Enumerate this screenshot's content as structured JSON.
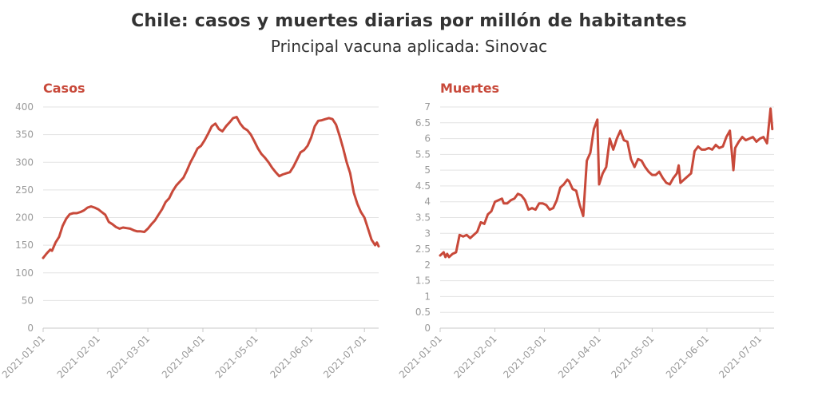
{
  "title": "Chile: casos y muertes diarias por millón de habitantes",
  "subtitle": "Principal vacuna aplicada: Sinovac",
  "colors": {
    "line": "#c8493a",
    "title_text": "#333333",
    "tick_text": "#9a9a9a",
    "grid": "#e3e3e3"
  },
  "chart_data": [
    {
      "type": "line",
      "title": "Casos",
      "xlabel": "",
      "ylabel": "",
      "x_ticks": [
        "2021-01-01",
        "2021-02-01",
        "2021-03-01",
        "2021-04-01",
        "2021-05-01",
        "2021-06-01",
        "2021-07-01"
      ],
      "x_range": [
        "2021-01-01",
        "2021-07-09"
      ],
      "y_ticks": [
        0,
        50,
        100,
        150,
        200,
        250,
        300,
        350,
        400
      ],
      "ylim": [
        0,
        400
      ],
      "grid": true,
      "series": [
        {
          "values": [
            [
              "2021-01-01",
              127
            ],
            [
              "2021-01-03",
              135
            ],
            [
              "2021-01-05",
              142
            ],
            [
              "2021-01-06",
              140
            ],
            [
              "2021-01-08",
              155
            ],
            [
              "2021-01-10",
              165
            ],
            [
              "2021-01-12",
              185
            ],
            [
              "2021-01-14",
              198
            ],
            [
              "2021-01-16",
              206
            ],
            [
              "2021-01-18",
              208
            ],
            [
              "2021-01-20",
              208
            ],
            [
              "2021-01-22",
              210
            ],
            [
              "2021-01-24",
              213
            ],
            [
              "2021-01-26",
              218
            ],
            [
              "2021-01-28",
              220
            ],
            [
              "2021-01-30",
              218
            ],
            [
              "2021-02-01",
              215
            ],
            [
              "2021-02-03",
              210
            ],
            [
              "2021-02-05",
              205
            ],
            [
              "2021-02-07",
              192
            ],
            [
              "2021-02-09",
              188
            ],
            [
              "2021-02-11",
              183
            ],
            [
              "2021-02-13",
              180
            ],
            [
              "2021-02-15",
              182
            ],
            [
              "2021-02-17",
              181
            ],
            [
              "2021-02-19",
              180
            ],
            [
              "2021-02-21",
              177
            ],
            [
              "2021-02-23",
              175
            ],
            [
              "2021-02-25",
              175
            ],
            [
              "2021-02-27",
              174
            ],
            [
              "2021-03-01",
              180
            ],
            [
              "2021-03-03",
              188
            ],
            [
              "2021-03-05",
              195
            ],
            [
              "2021-03-07",
              205
            ],
            [
              "2021-03-09",
              215
            ],
            [
              "2021-03-11",
              228
            ],
            [
              "2021-03-13",
              235
            ],
            [
              "2021-03-15",
              248
            ],
            [
              "2021-03-17",
              258
            ],
            [
              "2021-03-19",
              265
            ],
            [
              "2021-03-21",
              272
            ],
            [
              "2021-03-23",
              285
            ],
            [
              "2021-03-25",
              300
            ],
            [
              "2021-03-27",
              312
            ],
            [
              "2021-03-29",
              325
            ],
            [
              "2021-03-31",
              330
            ],
            [
              "2021-04-02",
              340
            ],
            [
              "2021-04-04",
              352
            ],
            [
              "2021-04-06",
              365
            ],
            [
              "2021-04-08",
              370
            ],
            [
              "2021-04-10",
              360
            ],
            [
              "2021-04-12",
              356
            ],
            [
              "2021-04-14",
              365
            ],
            [
              "2021-04-16",
              372
            ],
            [
              "2021-04-18",
              380
            ],
            [
              "2021-04-20",
              382
            ],
            [
              "2021-04-22",
              370
            ],
            [
              "2021-04-24",
              362
            ],
            [
              "2021-04-26",
              358
            ],
            [
              "2021-04-28",
              350
            ],
            [
              "2021-04-30",
              338
            ],
            [
              "2021-05-02",
              325
            ],
            [
              "2021-05-04",
              315
            ],
            [
              "2021-05-06",
              308
            ],
            [
              "2021-05-08",
              300
            ],
            [
              "2021-05-10",
              290
            ],
            [
              "2021-05-12",
              282
            ],
            [
              "2021-05-14",
              275
            ],
            [
              "2021-05-16",
              278
            ],
            [
              "2021-05-18",
              280
            ],
            [
              "2021-05-20",
              282
            ],
            [
              "2021-05-22",
              292
            ],
            [
              "2021-05-24",
              305
            ],
            [
              "2021-05-26",
              318
            ],
            [
              "2021-05-28",
              322
            ],
            [
              "2021-05-30",
              330
            ],
            [
              "2021-06-01",
              345
            ],
            [
              "2021-06-03",
              365
            ],
            [
              "2021-06-05",
              375
            ],
            [
              "2021-06-07",
              376
            ],
            [
              "2021-06-09",
              378
            ],
            [
              "2021-06-11",
              380
            ],
            [
              "2021-06-13",
              378
            ],
            [
              "2021-06-15",
              368
            ],
            [
              "2021-06-17",
              348
            ],
            [
              "2021-06-19",
              325
            ],
            [
              "2021-06-21",
              300
            ],
            [
              "2021-06-23",
              280
            ],
            [
              "2021-06-25",
              245
            ],
            [
              "2021-06-27",
              225
            ],
            [
              "2021-06-29",
              210
            ],
            [
              "2021-07-01",
              200
            ],
            [
              "2021-07-03",
              180
            ],
            [
              "2021-07-05",
              160
            ],
            [
              "2021-07-07",
              150
            ],
            [
              "2021-07-08",
              155
            ],
            [
              "2021-07-09",
              148
            ]
          ]
        }
      ]
    },
    {
      "type": "line",
      "title": "Muertes",
      "xlabel": "",
      "ylabel": "",
      "x_ticks": [
        "2021-01-01",
        "2021-02-01",
        "2021-03-01",
        "2021-04-01",
        "2021-05-01",
        "2021-06-01",
        "2021-07-01"
      ],
      "x_range": [
        "2021-01-01",
        "2021-07-09"
      ],
      "y_ticks": [
        "0",
        "0.5",
        "1",
        "1.5",
        "2",
        "2.5",
        "3",
        "3.5",
        "4",
        "4.5",
        "5",
        "5.5",
        "6",
        "6.5",
        "7"
      ],
      "ylim": [
        0,
        7
      ],
      "grid": true,
      "series": [
        {
          "values": [
            [
              "2021-01-01",
              2.3
            ],
            [
              "2021-01-03",
              2.4
            ],
            [
              "2021-01-04",
              2.25
            ],
            [
              "2021-01-05",
              2.35
            ],
            [
              "2021-01-06",
              2.25
            ],
            [
              "2021-01-08",
              2.35
            ],
            [
              "2021-01-10",
              2.4
            ],
            [
              "2021-01-12",
              2.95
            ],
            [
              "2021-01-14",
              2.9
            ],
            [
              "2021-01-16",
              2.95
            ],
            [
              "2021-01-18",
              2.85
            ],
            [
              "2021-01-20",
              2.95
            ],
            [
              "2021-01-22",
              3.05
            ],
            [
              "2021-01-24",
              3.35
            ],
            [
              "2021-01-26",
              3.3
            ],
            [
              "2021-01-28",
              3.6
            ],
            [
              "2021-01-30",
              3.7
            ],
            [
              "2021-02-01",
              4.0
            ],
            [
              "2021-02-03",
              4.05
            ],
            [
              "2021-02-05",
              4.1
            ],
            [
              "2021-02-06",
              3.95
            ],
            [
              "2021-02-08",
              3.95
            ],
            [
              "2021-02-10",
              4.05
            ],
            [
              "2021-02-12",
              4.1
            ],
            [
              "2021-02-14",
              4.25
            ],
            [
              "2021-02-16",
              4.2
            ],
            [
              "2021-02-18",
              4.05
            ],
            [
              "2021-02-20",
              3.75
            ],
            [
              "2021-02-22",
              3.8
            ],
            [
              "2021-02-24",
              3.75
            ],
            [
              "2021-02-26",
              3.95
            ],
            [
              "2021-02-28",
              3.95
            ],
            [
              "2021-03-02",
              3.9
            ],
            [
              "2021-03-04",
              3.75
            ],
            [
              "2021-03-06",
              3.8
            ],
            [
              "2021-03-08",
              4.05
            ],
            [
              "2021-03-10",
              4.45
            ],
            [
              "2021-03-12",
              4.55
            ],
            [
              "2021-03-14",
              4.7
            ],
            [
              "2021-03-15",
              4.65
            ],
            [
              "2021-03-17",
              4.4
            ],
            [
              "2021-03-19",
              4.35
            ],
            [
              "2021-03-21",
              3.9
            ],
            [
              "2021-03-23",
              3.55
            ],
            [
              "2021-03-25",
              5.3
            ],
            [
              "2021-03-27",
              5.55
            ],
            [
              "2021-03-29",
              6.3
            ],
            [
              "2021-03-31",
              6.6
            ],
            [
              "2021-04-01",
              4.55
            ],
            [
              "2021-04-03",
              4.9
            ],
            [
              "2021-04-05",
              5.1
            ],
            [
              "2021-04-07",
              6.0
            ],
            [
              "2021-04-09",
              5.65
            ],
            [
              "2021-04-11",
              6.0
            ],
            [
              "2021-04-13",
              6.25
            ],
            [
              "2021-04-15",
              5.95
            ],
            [
              "2021-04-17",
              5.9
            ],
            [
              "2021-04-19",
              5.35
            ],
            [
              "2021-04-21",
              5.1
            ],
            [
              "2021-04-23",
              5.35
            ],
            [
              "2021-04-25",
              5.3
            ],
            [
              "2021-04-27",
              5.1
            ],
            [
              "2021-04-29",
              4.95
            ],
            [
              "2021-05-01",
              4.85
            ],
            [
              "2021-05-03",
              4.85
            ],
            [
              "2021-05-05",
              4.95
            ],
            [
              "2021-05-07",
              4.75
            ],
            [
              "2021-05-09",
              4.6
            ],
            [
              "2021-05-11",
              4.55
            ],
            [
              "2021-05-13",
              4.75
            ],
            [
              "2021-05-15",
              4.9
            ],
            [
              "2021-05-16",
              5.15
            ],
            [
              "2021-05-17",
              4.6
            ],
            [
              "2021-05-19",
              4.7
            ],
            [
              "2021-05-21",
              4.8
            ],
            [
              "2021-05-23",
              4.9
            ],
            [
              "2021-05-25",
              5.6
            ],
            [
              "2021-05-27",
              5.75
            ],
            [
              "2021-05-29",
              5.65
            ],
            [
              "2021-05-31",
              5.65
            ],
            [
              "2021-06-02",
              5.7
            ],
            [
              "2021-06-04",
              5.65
            ],
            [
              "2021-06-06",
              5.8
            ],
            [
              "2021-06-08",
              5.7
            ],
            [
              "2021-06-10",
              5.75
            ],
            [
              "2021-06-12",
              6.05
            ],
            [
              "2021-06-14",
              6.25
            ],
            [
              "2021-06-16",
              5.0
            ],
            [
              "2021-06-17",
              5.7
            ],
            [
              "2021-06-19",
              5.9
            ],
            [
              "2021-06-21",
              6.05
            ],
            [
              "2021-06-23",
              5.95
            ],
            [
              "2021-06-25",
              6.0
            ],
            [
              "2021-06-27",
              6.05
            ],
            [
              "2021-06-29",
              5.9
            ],
            [
              "2021-07-01",
              6.0
            ],
            [
              "2021-07-03",
              6.05
            ],
            [
              "2021-07-05",
              5.85
            ],
            [
              "2021-07-07",
              6.95
            ],
            [
              "2021-07-08",
              6.3
            ]
          ]
        }
      ]
    }
  ]
}
